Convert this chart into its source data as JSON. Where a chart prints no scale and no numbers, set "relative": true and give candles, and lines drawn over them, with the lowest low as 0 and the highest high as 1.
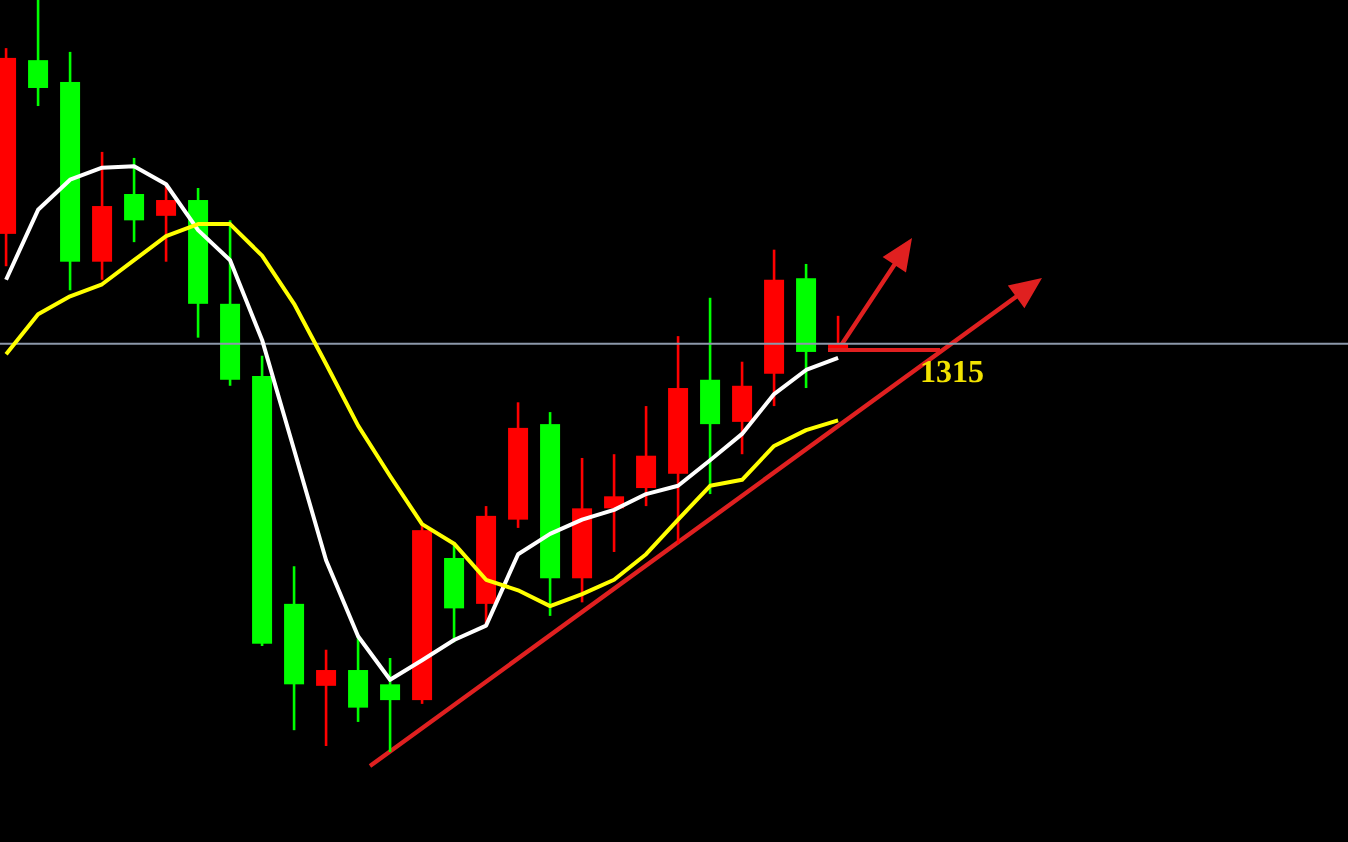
{
  "chart_data": {
    "type": "candlestick",
    "relative": true,
    "categories": [
      null,
      null,
      null,
      null,
      null,
      null,
      null,
      null,
      null,
      null,
      null,
      null,
      null,
      null,
      null,
      null,
      null,
      null,
      null,
      null,
      null,
      null,
      null,
      null,
      null,
      null,
      null
    ],
    "ohlc": [
      [
        0.689,
        0.936,
        0.646,
        0.923
      ],
      [
        0.92,
        1,
        0.859,
        0.883
      ],
      [
        0.891,
        0.931,
        0.614,
        0.652
      ],
      [
        0.652,
        0.798,
        0.628,
        0.726
      ],
      [
        0.742,
        0.79,
        0.678,
        0.707
      ],
      [
        0.713,
        0.755,
        0.652,
        0.734
      ],
      [
        0.734,
        0.75,
        0.551,
        0.596
      ],
      [
        0.596,
        0.707,
        0.487,
        0.495
      ],
      [
        0.5,
        0.527,
        0.141,
        0.144
      ],
      [
        0.197,
        0.247,
        0.029,
        0.09
      ],
      [
        0.088,
        0.136,
        0.008,
        0.109
      ],
      [
        0.109,
        0.154,
        0.04,
        0.059
      ],
      [
        0.09,
        0.125,
        0,
        0.069
      ],
      [
        0.069,
        0.303,
        0.064,
        0.295
      ],
      [
        0.258,
        0.279,
        0.146,
        0.191
      ],
      [
        0.197,
        0.327,
        0.17,
        0.314
      ],
      [
        0.309,
        0.465,
        0.298,
        0.431
      ],
      [
        0.436,
        0.452,
        0.181,
        0.231
      ],
      [
        0.231,
        0.391,
        0.199,
        0.324
      ],
      [
        0.324,
        0.396,
        0.266,
        0.34
      ],
      [
        0.351,
        0.46,
        0.327,
        0.394
      ],
      [
        0.37,
        0.553,
        0.277,
        0.484
      ],
      [
        0.495,
        0.604,
        0.343,
        0.436
      ],
      [
        0.439,
        0.519,
        0.396,
        0.487
      ],
      [
        0.503,
        0.668,
        0.46,
        0.628
      ],
      [
        0.63,
        0.649,
        0.484,
        0.532
      ],
      [
        0.535,
        0.58,
        0.535,
        0.543
      ]
    ],
    "colors": [
      "#ff0000",
      "#00ff00",
      "#00ff00",
      "#ff0000",
      "#00ff00",
      "#ff0000",
      "#00ff00",
      "#00ff00",
      "#00ff00",
      "#00ff00",
      "#ff0000",
      "#00ff00",
      "#00ff00",
      "#ff0000",
      "#00ff00",
      "#ff0000",
      "#ff0000",
      "#00ff00",
      "#ff0000",
      "#ff0000",
      "#ff0000",
      "#ff0000",
      "#00ff00",
      "#ff0000",
      "#ff0000",
      "#00ff00",
      "#ff0000"
    ],
    "series": [
      {
        "type": "line",
        "color": "#ffffff",
        "values": [
          0.628,
          0.721,
          0.761,
          0.777,
          0.779,
          0.755,
          0.694,
          0.654,
          0.548,
          0.402,
          0.255,
          0.154,
          0.096,
          0.122,
          0.149,
          0.168,
          0.263,
          0.29,
          0.309,
          0.322,
          0.343,
          0.354,
          0.388,
          0.423,
          0.476,
          0.508,
          0.524
        ]
      },
      {
        "type": "line",
        "color": "#ffff00",
        "values": [
          0.529,
          0.582,
          0.606,
          0.622,
          0.654,
          0.686,
          0.702,
          0.702,
          0.66,
          0.596,
          0.516,
          0.434,
          0.367,
          0.303,
          0.277,
          0.229,
          0.215,
          0.194,
          0.21,
          0.229,
          0.263,
          0.309,
          0.354,
          0.362,
          0.407,
          0.428,
          0.441
        ]
      }
    ],
    "ref_lines": [
      {
        "axis": "y",
        "value": 0.543,
        "color": "#8c98aa"
      }
    ],
    "annotations": [
      "1315"
    ]
  }
}
